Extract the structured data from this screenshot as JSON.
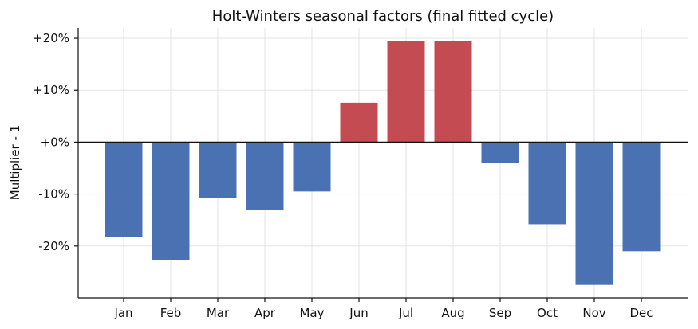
{
  "chart_data": {
    "type": "bar",
    "title": "Holt-Winters seasonal factors (final fitted cycle)",
    "xlabel": "",
    "ylabel": "Multiplier - 1",
    "categories": [
      "Jan",
      "Feb",
      "Mar",
      "Apr",
      "May",
      "Jun",
      "Jul",
      "Aug",
      "Sep",
      "Oct",
      "Nov",
      "Dec"
    ],
    "values": [
      -18.2,
      -22.7,
      -10.7,
      -13.1,
      -9.5,
      7.6,
      19.4,
      19.4,
      -4.0,
      -15.8,
      -27.5,
      -21.0
    ],
    "ylim": [
      -30,
      22
    ],
    "yticks": [
      20,
      10,
      0,
      -10,
      -20
    ],
    "ytick_labels": [
      "+20%",
      "+10%",
      "+0%",
      "-10%",
      "-20%"
    ],
    "grid": true,
    "colors": {
      "positive": "#c44b51",
      "negative": "#4a72b2"
    }
  }
}
